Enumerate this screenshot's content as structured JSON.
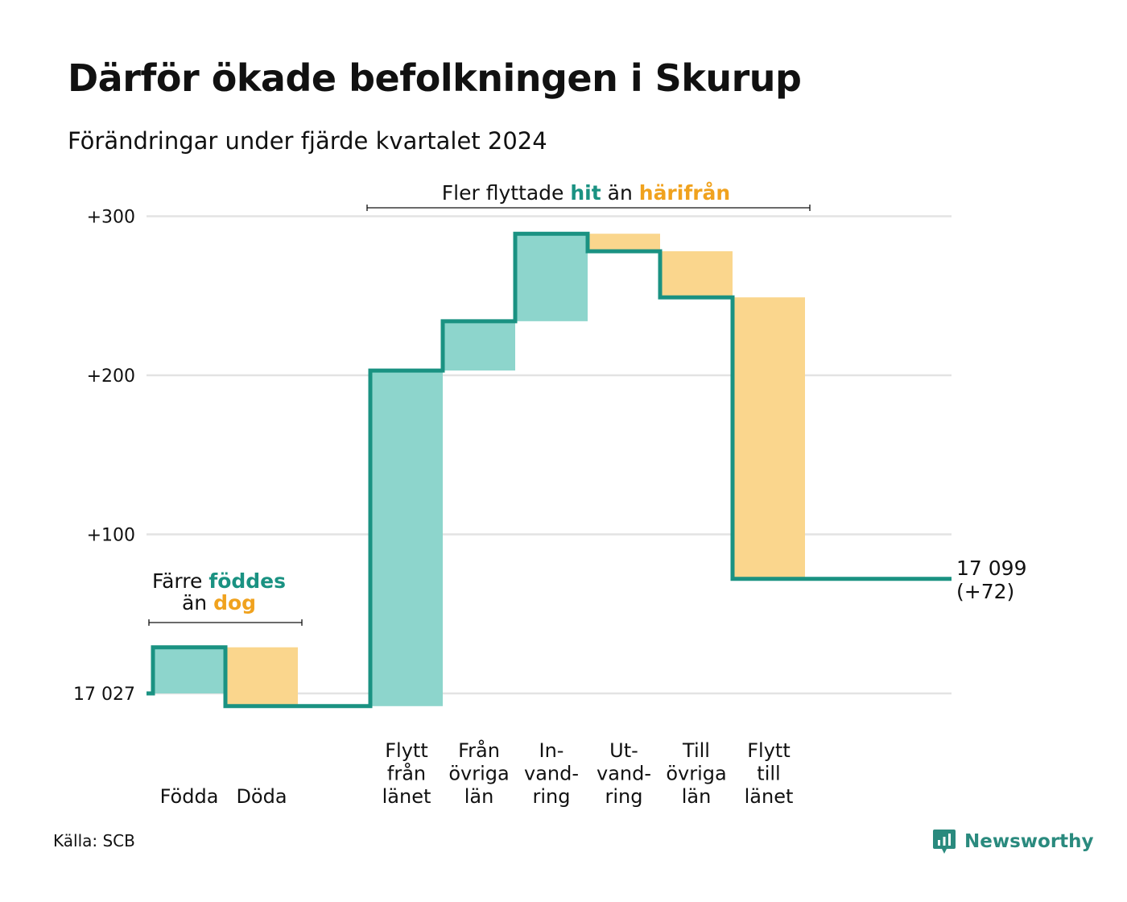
{
  "title": "Därför ökade befolkningen i Skurup",
  "subtitle": "Förändringar under fjärde kvartalet 2024",
  "source": "Källa: SCB",
  "logo": {
    "name": "Newsworthy",
    "icon": "newsworthy-logo-icon"
  },
  "colors": {
    "positive": "#8dd5cc",
    "negative": "#fad68d",
    "line": "#1a9282",
    "teal_text": "#1a9282",
    "orange_text": "#f0a21e",
    "grid": "#e3e3e3"
  },
  "chart_data": {
    "type": "waterfall",
    "base_population": 17027,
    "base_label": "17 027",
    "ylim": [
      -10,
      305
    ],
    "yticks": [
      {
        "value": 0,
        "label": "17 027"
      },
      {
        "value": 100,
        "label": "+100"
      },
      {
        "value": 200,
        "label": "+200"
      },
      {
        "value": 300,
        "label": "+300"
      }
    ],
    "steps": [
      {
        "lines": [
          "Födda"
        ],
        "change": 29,
        "sign": "positive"
      },
      {
        "lines": [
          "Döda"
        ],
        "change": -37,
        "sign": "negative"
      },
      {
        "lines": [],
        "change": 0,
        "sign": "gap"
      },
      {
        "lines": [
          "Flytt",
          "från",
          "länet"
        ],
        "change": 211,
        "sign": "positive"
      },
      {
        "lines": [
          "Från",
          "övriga",
          "län"
        ],
        "change": 31,
        "sign": "positive"
      },
      {
        "lines": [
          "In-",
          "vand-",
          "ring"
        ],
        "change": 55,
        "sign": "positive"
      },
      {
        "lines": [
          "Ut-",
          "vand-",
          "ring"
        ],
        "change": -11,
        "sign": "negative"
      },
      {
        "lines": [
          "Till",
          "övriga",
          "län"
        ],
        "change": -29,
        "sign": "negative"
      },
      {
        "lines": [
          "Flytt",
          "till",
          "länet"
        ],
        "change": -177,
        "sign": "negative"
      }
    ],
    "end_label": [
      "17 099",
      "(+72)"
    ],
    "annotations": [
      {
        "parts": [
          {
            "text": "Färre ",
            "style": "normal"
          },
          {
            "text": "föddes",
            "style": "teal"
          }
        ],
        "parts2": [
          {
            "text": "än ",
            "style": "normal"
          },
          {
            "text": "dog",
            "style": "orange"
          }
        ]
      },
      {
        "parts": [
          {
            "text": "Fler flyttade ",
            "style": "normal"
          },
          {
            "text": "hit",
            "style": "teal"
          },
          {
            "text": " än ",
            "style": "normal"
          },
          {
            "text": "härifrån",
            "style": "orange"
          }
        ]
      }
    ]
  }
}
